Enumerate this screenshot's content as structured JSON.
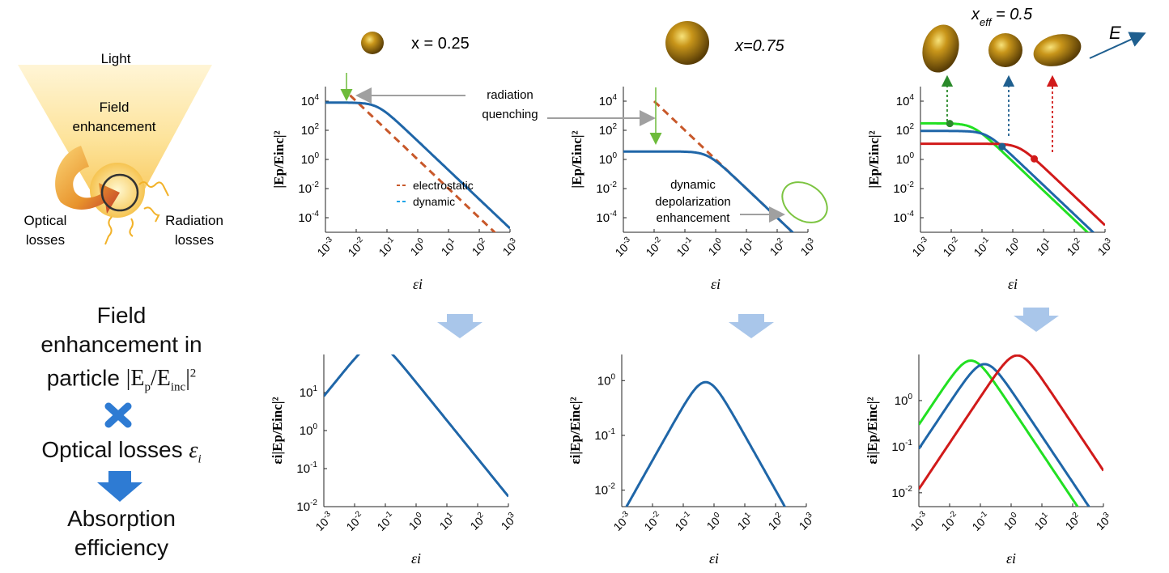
{
  "colors": {
    "blue": "#1f66a8",
    "red": "#d11a1a",
    "green": "#22e022",
    "orange": "#c8582a",
    "arrow": "#a9c6ea",
    "darkblue": "#2e7bd3",
    "gold": "#b8860b"
  },
  "illustration": {
    "light": "Light",
    "field_enhancement": "Field\nenhancement",
    "optical_losses": "Optical\nlosses",
    "radiation_losses": "Radiation\nlosses"
  },
  "left_text": {
    "line1": "Field",
    "line2": "enhancement in",
    "line3_prefix": "particle ",
    "formula_E": "E",
    "formula_p": "p",
    "formula_inc": "inc",
    "formula_sq": "2",
    "times_icon": "times-icon",
    "optical_losses": "Optical losses ",
    "epsilon": "ε",
    "epsilon_sub": "i",
    "absorption_line1": "Absorption",
    "absorption_line2": "efficiency"
  },
  "panel_titles": {
    "p1": "x = 0.25",
    "p2": "x=0.75",
    "p3_x": "x",
    "p3_sub": "eff",
    "p3_val": " = 0.5",
    "e_label": "E"
  },
  "annotations": {
    "radiation": "radiation",
    "quenching": "quenching",
    "dynamic": "dynamic",
    "depolarization": "depolarization",
    "enhancement": "enhancement"
  },
  "chart_data": [
    {
      "id": "top1",
      "type": "line",
      "xlabel": "εi",
      "ylabel": "|Ep/Einc|²",
      "xlim": [
        0.001,
        1000
      ],
      "ylim": [
        1e-05,
        100000
      ],
      "yticks": [
        -4,
        -2,
        0,
        2,
        4
      ],
      "legend": [
        "electrostatic",
        "dynamic"
      ],
      "series": [
        {
          "name": "electrostatic",
          "color": "#c8582a",
          "dash": true,
          "model": {
            "kind": "line",
            "logx0": -2,
            "logy0": 4,
            "slope": -2,
            "xmin": -2.2
          }
        },
        {
          "name": "dynamic",
          "color": "#1f66a8",
          "model": {
            "kind": "sat",
            "A": 8000,
            "k": 4.3
          }
        }
      ]
    },
    {
      "id": "top2",
      "type": "line",
      "xlabel": "εi",
      "ylabel": "|Ep/Einc|²",
      "xlim": [
        0.001,
        1000
      ],
      "ylim": [
        1e-05,
        100000
      ],
      "yticks": [
        -4,
        -2,
        0,
        2,
        4
      ],
      "series": [
        {
          "name": "electrostatic",
          "color": "#c8582a",
          "dash": true,
          "model": {
            "kind": "line",
            "logx0": -2,
            "logy0": 4,
            "slope": -2,
            "xmin": -2
          }
        },
        {
          "name": "dynamic",
          "color": "#1f66a8",
          "model": {
            "kind": "sat",
            "A": 3.5,
            "k": 1
          }
        }
      ]
    },
    {
      "id": "top3",
      "type": "line",
      "xlabel": "εi",
      "ylabel": "|Ep/Einc|²",
      "xlim": [
        0.001,
        1000
      ],
      "ylim": [
        1e-05,
        100000
      ],
      "yticks": [
        -4,
        -2,
        0,
        2,
        4
      ],
      "series": [
        {
          "name": "green",
          "color": "#22e022",
          "model": {
            "kind": "sat",
            "A": 300,
            "k": 0.85
          }
        },
        {
          "name": "blue",
          "color": "#1f66a8",
          "model": {
            "kind": "sat",
            "A": 90,
            "k": 1.3
          }
        },
        {
          "name": "red",
          "color": "#d11a1a",
          "model": {
            "kind": "sat",
            "A": 12,
            "k": 5.5
          }
        }
      ],
      "markers": [
        {
          "x": 0.009,
          "color": "#2b8a2b",
          "series": 0
        },
        {
          "x": 0.45,
          "color": "#1f5f8f",
          "series": 1
        },
        {
          "x": 5,
          "color": "#d11a1a",
          "series": 2
        }
      ]
    },
    {
      "id": "bot1",
      "type": "line",
      "xlabel": "εi",
      "ylabel": "εi|Ep/Einc|²",
      "xlim": [
        0.001,
        1000
      ],
      "ylim": [
        0.01,
        100
      ],
      "yticks": [
        -2,
        -1,
        0,
        1
      ],
      "series": [
        {
          "name": "absorption",
          "color": "#1f66a8",
          "model": {
            "kind": "sat",
            "A": 8000,
            "k": 4.3,
            "times_x": true
          }
        }
      ]
    },
    {
      "id": "bot2",
      "type": "line",
      "xlabel": "εi",
      "ylabel": "εi|Ep/Einc|²",
      "xlim": [
        0.001,
        1000
      ],
      "ylim": [
        0.005,
        3
      ],
      "yticks": [
        -2,
        -1,
        0
      ],
      "series": [
        {
          "name": "absorption",
          "color": "#1f66a8",
          "model": {
            "kind": "sat",
            "A": 3.5,
            "k": 1,
            "times_x": true
          }
        }
      ]
    },
    {
      "id": "bot3",
      "type": "line",
      "xlabel": "εi",
      "ylabel": "εi|Ep/Einc|²",
      "xlim": [
        0.001,
        1000
      ],
      "ylim": [
        0.005,
        10
      ],
      "yticks": [
        -2,
        -1,
        0
      ],
      "series": [
        {
          "name": "green",
          "color": "#22e022",
          "model": {
            "kind": "sat",
            "A": 300,
            "k": 0.85,
            "times_x": true
          }
        },
        {
          "name": "blue",
          "color": "#1f66a8",
          "model": {
            "kind": "sat",
            "A": 90,
            "k": 1.3,
            "times_x": true
          }
        },
        {
          "name": "red",
          "color": "#d11a1a",
          "model": {
            "kind": "sat",
            "A": 12,
            "k": 5.5,
            "times_x": true
          }
        }
      ]
    }
  ]
}
